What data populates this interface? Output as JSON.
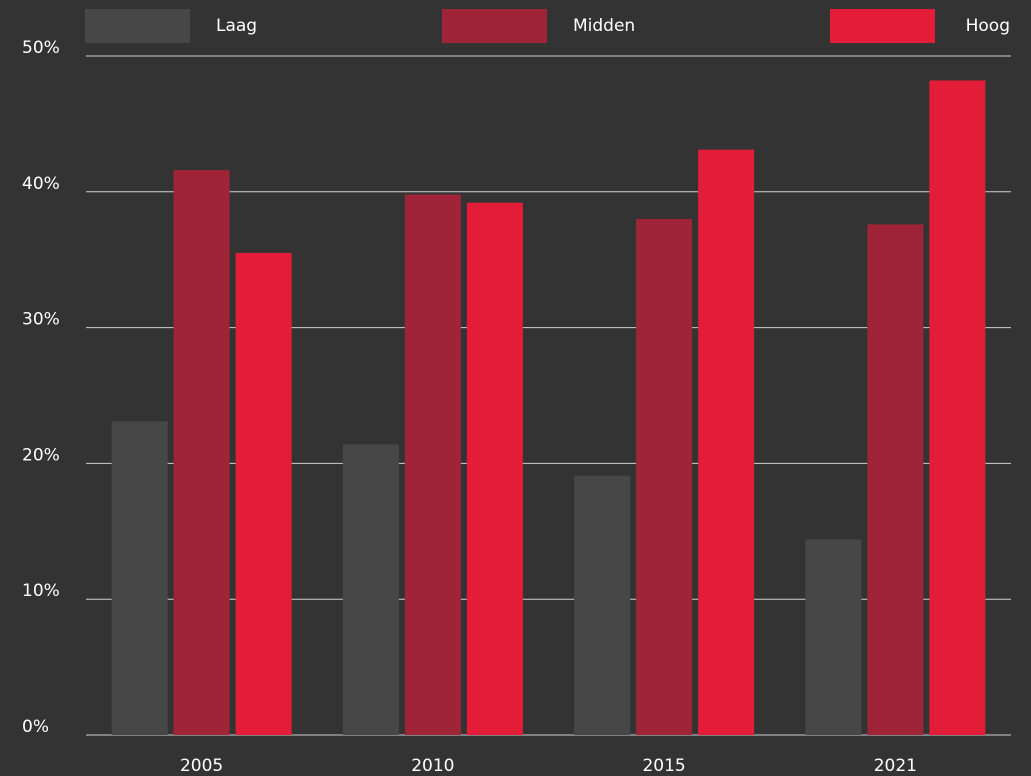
{
  "chart_data": {
    "type": "bar",
    "categories": [
      "2005",
      "2010",
      "2015",
      "2021"
    ],
    "series": [
      {
        "name": "Laag",
        "color": "#474747",
        "values": [
          23.1,
          21.4,
          19.1,
          14.4
        ]
      },
      {
        "name": "Midden",
        "color": "#a02437",
        "values": [
          41.6,
          39.8,
          38.0,
          37.6
        ]
      },
      {
        "name": "Hoog",
        "color": "#e31d38",
        "values": [
          35.5,
          39.2,
          43.1,
          48.2
        ]
      }
    ],
    "ylim": [
      0,
      50
    ],
    "yticks": [
      {
        "value": 0,
        "label": "0%"
      },
      {
        "value": 10,
        "label": "10%"
      },
      {
        "value": 20,
        "label": "20%"
      },
      {
        "value": 30,
        "label": "30%"
      },
      {
        "value": 40,
        "label": "40%"
      },
      {
        "value": 50,
        "label": "50%"
      }
    ],
    "grid": true,
    "legend": "top"
  }
}
